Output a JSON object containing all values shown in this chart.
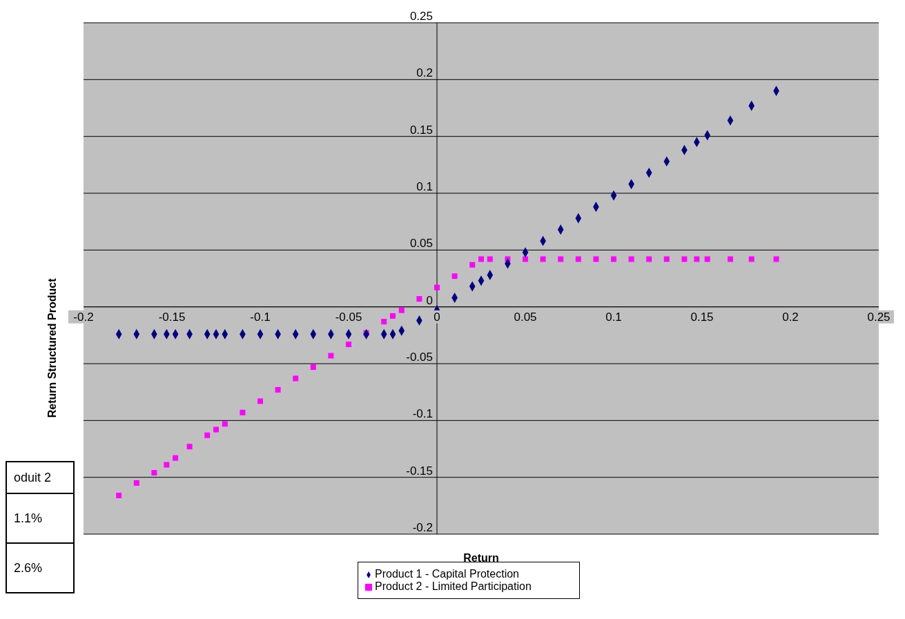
{
  "chart_data": {
    "type": "scatter",
    "xlabel": "Return",
    "ylabel": "Return Structured Product",
    "x": [
      -0.18,
      -0.17,
      -0.16,
      -0.153,
      -0.148,
      -0.14,
      -0.13,
      -0.125,
      -0.12,
      -0.11,
      -0.1,
      -0.09,
      -0.08,
      -0.07,
      -0.06,
      -0.05,
      -0.04,
      -0.03,
      -0.025,
      -0.02,
      -0.01,
      0,
      0.01,
      0.02,
      0.025,
      0.03,
      0.04,
      0.05,
      0.06,
      0.07,
      0.08,
      0.09,
      0.1,
      0.11,
      0.12,
      0.13,
      0.14,
      0.147,
      0.153,
      0.166,
      0.178,
      0.192
    ],
    "series": [
      {
        "name": "Product 1 - Capital Protection",
        "color": "#000080",
        "marker": "diamond",
        "values": [
          -0.024,
          -0.024,
          -0.024,
          -0.024,
          -0.024,
          -0.024,
          -0.024,
          -0.024,
          -0.024,
          -0.024,
          -0.024,
          -0.024,
          -0.024,
          -0.024,
          -0.024,
          -0.024,
          -0.024,
          -0.024,
          -0.024,
          -0.021,
          -0.012,
          -0.003,
          0.008,
          0.018,
          0.023,
          0.028,
          0.038,
          0.048,
          0.058,
          0.068,
          0.078,
          0.088,
          0.098,
          0.108,
          0.118,
          0.128,
          0.138,
          0.145,
          0.151,
          0.164,
          0.177,
          0.19
        ]
      },
      {
        "name": "Product 2 - Limited Participation",
        "color": "#ff00ff",
        "marker": "square",
        "values": [
          -0.166,
          -0.155,
          -0.146,
          -0.139,
          -0.133,
          -0.123,
          -0.113,
          -0.108,
          -0.103,
          -0.093,
          -0.083,
          -0.073,
          -0.063,
          -0.053,
          -0.043,
          -0.033,
          -0.023,
          -0.013,
          -0.008,
          -0.003,
          0.007,
          0.017,
          0.027,
          0.037,
          0.042,
          0.042,
          0.042,
          0.042,
          0.042,
          0.042,
          0.042,
          0.042,
          0.042,
          0.042,
          0.042,
          0.042,
          0.042,
          0.042,
          0.042,
          0.042,
          0.042,
          0.042
        ]
      }
    ],
    "xlim": [
      -0.2,
      0.25
    ],
    "xticks": [
      -0.2,
      -0.15,
      -0.1,
      -0.05,
      0,
      0.05,
      0.1,
      0.15,
      0.2,
      0.25
    ],
    "ylim": [
      -0.2,
      0.25
    ],
    "yticks": [
      -0.2,
      -0.15,
      -0.1,
      -0.05,
      0,
      0.05,
      0.1,
      0.15,
      0.2,
      0.25
    ],
    "grid": "y",
    "legend": "bottom",
    "annotations": [
      "oduit 2",
      "1.1%",
      "2.6%"
    ]
  }
}
